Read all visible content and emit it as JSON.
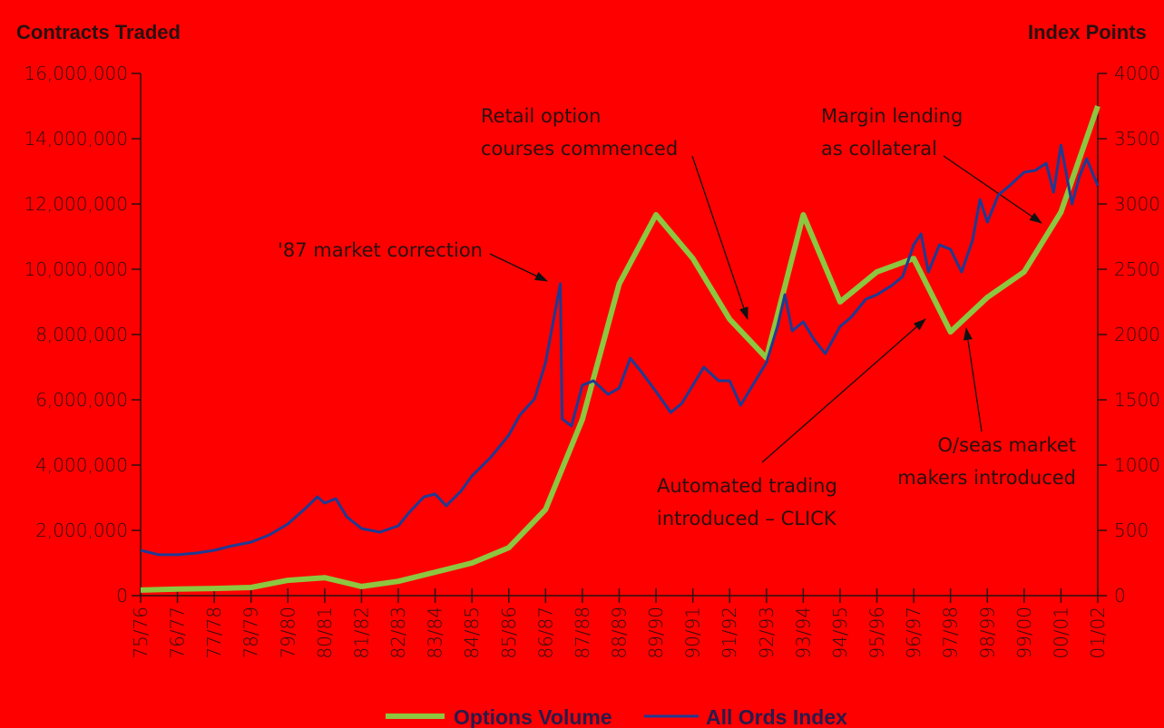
{
  "chart_data": {
    "type": "line",
    "y_axis_label": "Contracts Traded",
    "y2_axis_label": "Index Points",
    "categories": [
      "75/76",
      "76/77",
      "77/78",
      "78/79",
      "79/80",
      "80/81",
      "81/82",
      "82/83",
      "83/84",
      "84/85",
      "85/86",
      "86/87",
      "87/88",
      "88/89",
      "89/90",
      "90/91",
      "91/92",
      "92/93",
      "93/94",
      "94/95",
      "95/96",
      "96/97",
      "97/98",
      "98/99",
      "99/00",
      "00/01",
      "01/02"
    ],
    "ylim": [
      0,
      16000000
    ],
    "yticks": [
      0,
      {
        "value": 2000000,
        "label": "2,000,000"
      },
      {
        "value": 4000000,
        "label": "4,000,000"
      },
      {
        "value": 6000000,
        "label": "6,000,000"
      },
      {
        "value": 8000000,
        "label": "8,000,000"
      },
      {
        "value": 10000000,
        "label": "10,000,000"
      },
      {
        "value": 12000000,
        "label": "12,000,000"
      },
      {
        "value": 14000000,
        "label": "14,000,000"
      },
      {
        "value": 16000000,
        "label": "16,000,000"
      }
    ],
    "y2lim": [
      0,
      4000
    ],
    "y2ticks": [
      0,
      500,
      1000,
      1500,
      2000,
      2500,
      3000,
      3500,
      4000
    ],
    "series": [
      {
        "name": "Options Volume",
        "color": "#8dc63f",
        "values": [
          170000,
          200000,
          220000,
          250000,
          470000,
          550000,
          280000,
          440000,
          720000,
          1000000,
          1470000,
          2640000,
          5400000,
          9550000,
          11670000,
          10330000,
          8470000,
          7280000,
          11670000,
          9000000,
          9920000,
          10330000,
          8080000,
          9140000,
          9920000,
          11750000,
          15000000
        ]
      },
      {
        "name": "All Ords Index",
        "color": "#1f3a93",
        "axis": "y2",
        "x": [
          1976.0,
          1976.5,
          1977.0,
          1977.5,
          1978.0,
          1978.5,
          1979.0,
          1979.5,
          1980.0,
          1980.5,
          1980.8,
          1981.0,
          1981.3,
          1981.6,
          1982.0,
          1982.5,
          1983.0,
          1983.3,
          1983.7,
          1984.0,
          1984.3,
          1984.7,
          1985.0,
          1985.5,
          1986.0,
          1986.3,
          1986.7,
          1987.0,
          1987.4,
          1987.45,
          1987.7,
          1988.0,
          1988.3,
          1988.7,
          1989.0,
          1989.3,
          1989.6,
          1990.0,
          1990.4,
          1990.7,
          1991.0,
          1991.3,
          1991.7,
          1992.0,
          1992.3,
          1992.7,
          1993.0,
          1993.3,
          1993.5,
          1993.7,
          1994.0,
          1994.3,
          1994.6,
          1995.0,
          1995.3,
          1995.7,
          1996.0,
          1996.4,
          1996.7,
          1997.0,
          1997.2,
          1997.4,
          1997.7,
          1998.0,
          1998.3,
          1998.6,
          1998.8,
          1999.0,
          1999.3,
          1999.6,
          2000.0,
          2000.3,
          2000.6,
          2000.8,
          2001.0,
          2001.3,
          2001.5,
          2001.7,
          2002.0
        ],
        "values": [
          347,
          313,
          313,
          326,
          347,
          382,
          410,
          465,
          549,
          674,
          757,
          708,
          743,
          604,
          514,
          486,
          535,
          639,
          757,
          778,
          688,
          799,
          917,
          1056,
          1229,
          1382,
          1507,
          1785,
          2389,
          1354,
          1299,
          1611,
          1646,
          1542,
          1590,
          1819,
          1715,
          1563,
          1403,
          1472,
          1611,
          1750,
          1646,
          1646,
          1458,
          1646,
          1785,
          2062,
          2305,
          2028,
          2097,
          1958,
          1854,
          2062,
          2132,
          2271,
          2305,
          2375,
          2444,
          2687,
          2771,
          2479,
          2687,
          2653,
          2479,
          2722,
          3035,
          2861,
          3069,
          3139,
          3243,
          3257,
          3312,
          3090,
          3451,
          3000,
          3208,
          3347,
          3139
        ]
      }
    ],
    "annotations": [
      {
        "lines": [
          "'87 market correction"
        ]
      },
      {
        "lines": [
          "Retail option",
          "courses commenced"
        ]
      },
      {
        "lines": [
          "Margin lending",
          "as collateral"
        ]
      },
      {
        "lines": [
          "Automated trading",
          "introduced – CLICK"
        ]
      },
      {
        "lines": [
          "O/seas market",
          "makers introduced"
        ]
      }
    ]
  }
}
